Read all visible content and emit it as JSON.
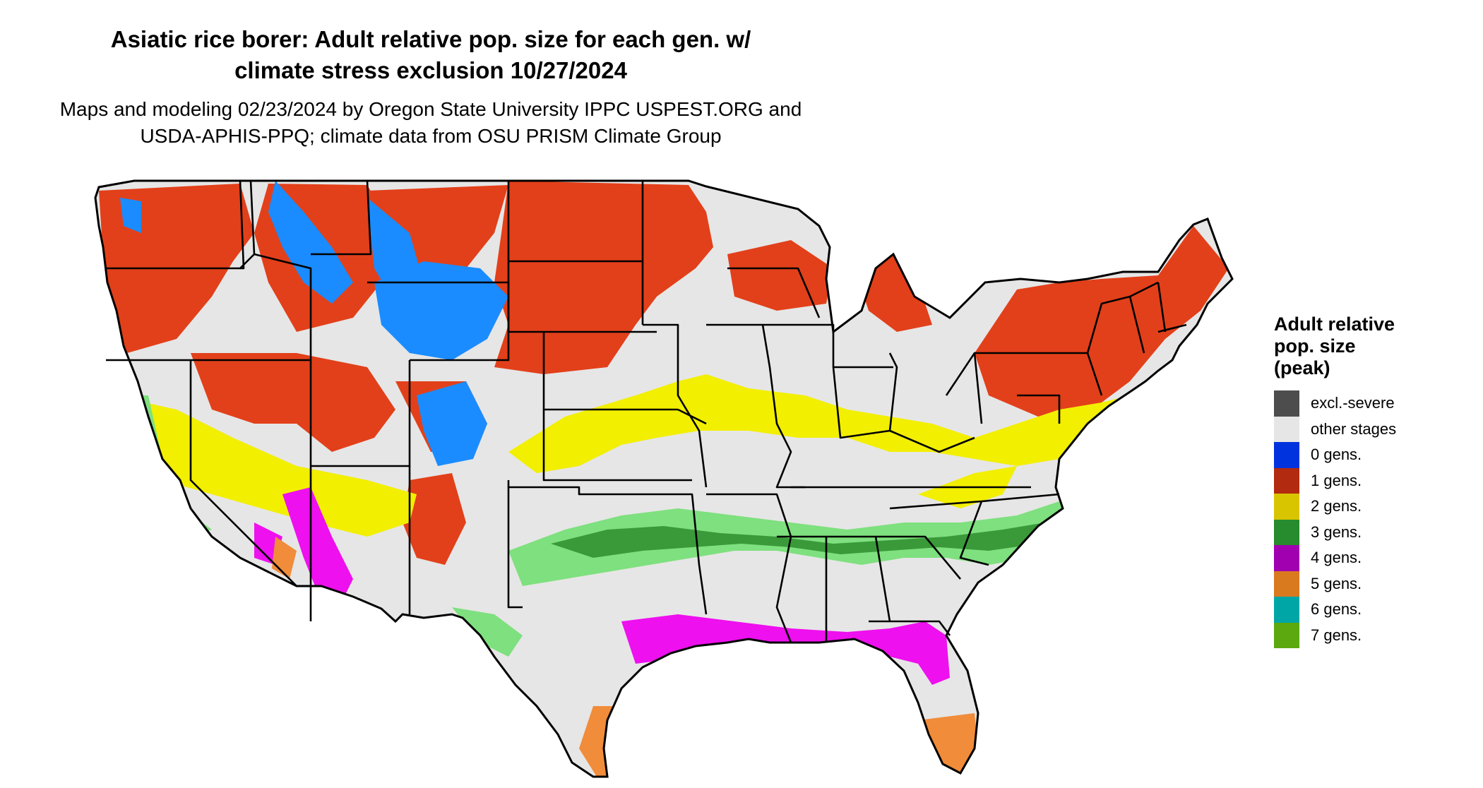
{
  "title_line1": "Asiatic rice borer: Adult relative pop. size for each gen. w/",
  "title_line2": "climate stress exclusion 10/27/2024",
  "subtitle_line1": "Maps and modeling 02/23/2024 by Oregon State University IPPC USPEST.ORG and",
  "subtitle_line2": "USDA-APHIS-PPQ; climate data from OSU PRISM Climate Group",
  "map": {
    "region": "Conterminous United States",
    "background_color": "#e6e6e6",
    "border_color": "#000000"
  },
  "legend": {
    "title_line1": "Adult relative",
    "title_line2": "pop. size",
    "title_line3": "(peak)",
    "items": [
      {
        "label": "excl.-severe",
        "color": "#4d4d4d"
      },
      {
        "label": "other stages",
        "color": "#e6e6e6"
      },
      {
        "label": "0 gens.",
        "color": "#0033dd"
      },
      {
        "label": "1 gens.",
        "color": "#b22a10"
      },
      {
        "label": "2 gens.",
        "color": "#d9c400"
      },
      {
        "label": "3 gens.",
        "color": "#268c2d"
      },
      {
        "label": "4 gens.",
        "color": "#a000b0"
      },
      {
        "label": "5 gens.",
        "color": "#d97a1f"
      },
      {
        "label": "6 gens.",
        "color": "#00a6a6"
      },
      {
        "label": "7 gens.",
        "color": "#5ca80f"
      }
    ]
  }
}
